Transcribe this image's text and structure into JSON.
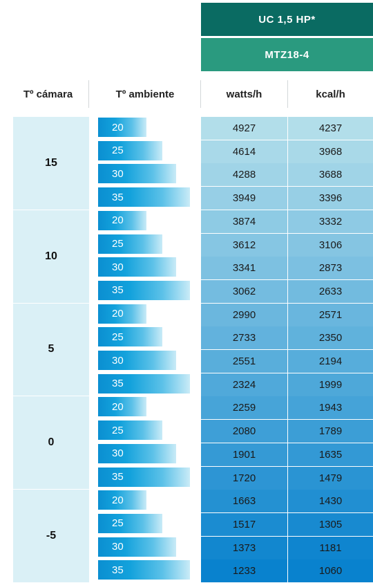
{
  "header": {
    "model": "UC 1,5 HP*",
    "compressor": "MTZ18-4"
  },
  "columns": {
    "camara": "Tº cámara",
    "ambiente": "Tº ambiente",
    "watts": "watts/h",
    "kcal": "kcal/h"
  },
  "groups": [
    {
      "camara": "15",
      "rows": [
        {
          "ambiente": "20",
          "watts": "4927",
          "kcal": "4237"
        },
        {
          "ambiente": "25",
          "watts": "4614",
          "kcal": "3968"
        },
        {
          "ambiente": "30",
          "watts": "4288",
          "kcal": "3688"
        },
        {
          "ambiente": "35",
          "watts": "3949",
          "kcal": "3396"
        }
      ]
    },
    {
      "camara": "10",
      "rows": [
        {
          "ambiente": "20",
          "watts": "3874",
          "kcal": "3332"
        },
        {
          "ambiente": "25",
          "watts": "3612",
          "kcal": "3106"
        },
        {
          "ambiente": "30",
          "watts": "3341",
          "kcal": "2873"
        },
        {
          "ambiente": "35",
          "watts": "3062",
          "kcal": "2633"
        }
      ]
    },
    {
      "camara": "5",
      "rows": [
        {
          "ambiente": "20",
          "watts": "2990",
          "kcal": "2571"
        },
        {
          "ambiente": "25",
          "watts": "2733",
          "kcal": "2350"
        },
        {
          "ambiente": "30",
          "watts": "2551",
          "kcal": "2194"
        },
        {
          "ambiente": "35",
          "watts": "2324",
          "kcal": "1999"
        }
      ]
    },
    {
      "camara": "0",
      "rows": [
        {
          "ambiente": "20",
          "watts": "2259",
          "kcal": "1943"
        },
        {
          "ambiente": "25",
          "watts": "2080",
          "kcal": "1789"
        },
        {
          "ambiente": "30",
          "watts": "1901",
          "kcal": "1635"
        },
        {
          "ambiente": "35",
          "watts": "1720",
          "kcal": "1479"
        }
      ]
    },
    {
      "camara": "-5",
      "rows": [
        {
          "ambiente": "20",
          "watts": "1663",
          "kcal": "1430"
        },
        {
          "ambiente": "25",
          "watts": "1517",
          "kcal": "1305"
        },
        {
          "ambiente": "30",
          "watts": "1373",
          "kcal": "1181"
        },
        {
          "ambiente": "35",
          "watts": "1233",
          "kcal": "1060"
        }
      ]
    }
  ],
  "colors": {
    "header_dark": "#0a6b62",
    "header_light": "#2a9a7f",
    "camara_bg": "#daf0f6",
    "bar_blue": "#0b8fd1",
    "cell_light": "#a8dbe8",
    "cell_dark": "#0a86cf"
  }
}
